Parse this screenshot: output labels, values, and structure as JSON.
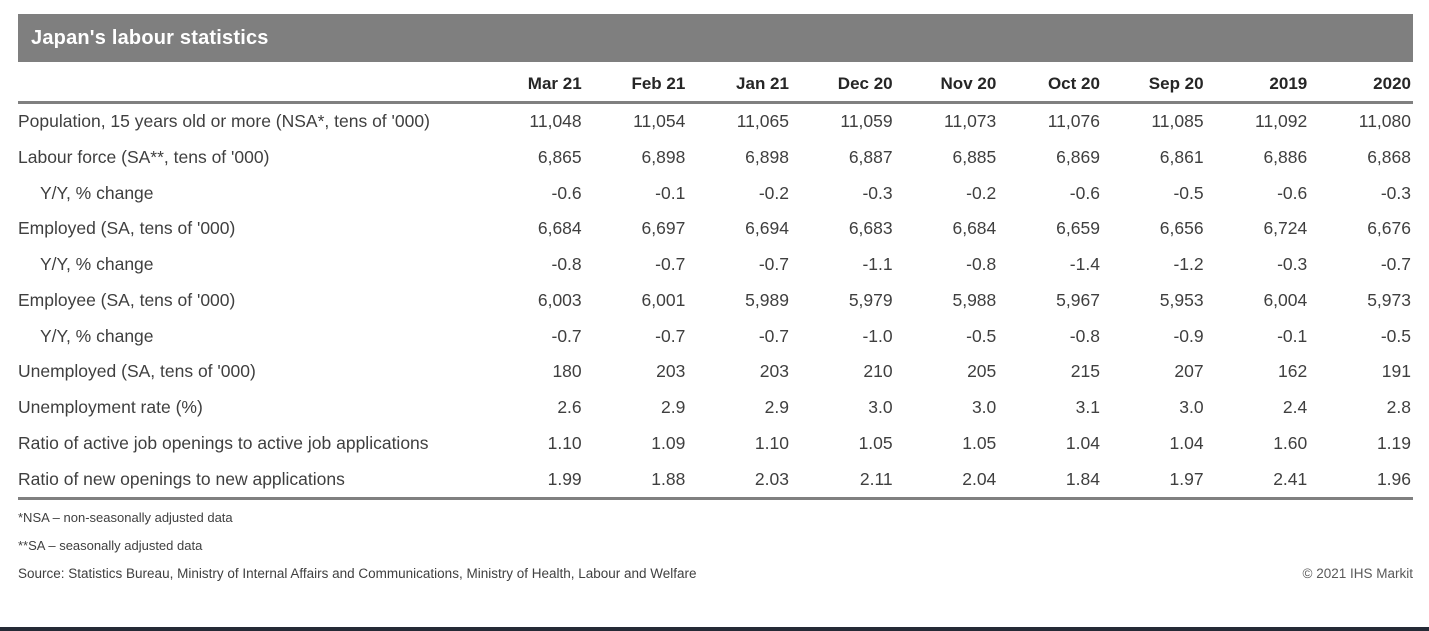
{
  "title": "Japan's labour statistics",
  "chart_data": {
    "type": "table",
    "title": "Japan's labour statistics",
    "columns": [
      "Mar 21",
      "Feb 21",
      "Jan 21",
      "Dec 20",
      "Nov 20",
      "Oct 20",
      "Sep 20",
      "2019",
      "2020"
    ],
    "rows": [
      {
        "label": "Population, 15 years old or more (NSA*, tens of '000)",
        "indent": false,
        "values": [
          "11,048",
          "11,054",
          "11,065",
          "11,059",
          "11,073",
          "11,076",
          "11,085",
          "11,092",
          "11,080"
        ]
      },
      {
        "label": "Labour force (SA**, tens of '000)",
        "indent": false,
        "values": [
          "6,865",
          "6,898",
          "6,898",
          "6,887",
          "6,885",
          "6,869",
          "6,861",
          "6,886",
          "6,868"
        ]
      },
      {
        "label": "Y/Y, % change",
        "indent": true,
        "values": [
          "-0.6",
          "-0.1",
          "-0.2",
          "-0.3",
          "-0.2",
          "-0.6",
          "-0.5",
          "-0.6",
          "-0.3"
        ]
      },
      {
        "label": "Employed (SA, tens of '000)",
        "indent": false,
        "values": [
          "6,684",
          "6,697",
          "6,694",
          "6,683",
          "6,684",
          "6,659",
          "6,656",
          "6,724",
          "6,676"
        ]
      },
      {
        "label": "Y/Y, % change",
        "indent": true,
        "values": [
          "-0.8",
          "-0.7",
          "-0.7",
          "-1.1",
          "-0.8",
          "-1.4",
          "-1.2",
          "-0.3",
          "-0.7"
        ]
      },
      {
        "label": "Employee (SA, tens of '000)",
        "indent": false,
        "values": [
          "6,003",
          "6,001",
          "5,989",
          "5,979",
          "5,988",
          "5,967",
          "5,953",
          "6,004",
          "5,973"
        ]
      },
      {
        "label": "Y/Y, % change",
        "indent": true,
        "values": [
          "-0.7",
          "-0.7",
          "-0.7",
          "-1.0",
          "-0.5",
          "-0.8",
          "-0.9",
          "-0.1",
          "-0.5"
        ]
      },
      {
        "label": "Unemployed (SA, tens of '000)",
        "indent": false,
        "values": [
          "180",
          "203",
          "203",
          "210",
          "205",
          "215",
          "207",
          "162",
          "191"
        ]
      },
      {
        "label": "Unemployment rate (%)",
        "indent": false,
        "values": [
          "2.6",
          "2.9",
          "2.9",
          "3.0",
          "3.0",
          "3.1",
          "3.0",
          "2.4",
          "2.8"
        ]
      },
      {
        "label": "Ratio of active job openings to active job applications",
        "indent": false,
        "values": [
          "1.10",
          "1.09",
          "1.10",
          "1.05",
          "1.05",
          "1.04",
          "1.04",
          "1.60",
          "1.19"
        ]
      },
      {
        "label": "Ratio of new openings to new applications",
        "indent": false,
        "values": [
          "1.99",
          "1.88",
          "2.03",
          "2.11",
          "2.04",
          "1.84",
          "1.97",
          "2.41",
          "1.96"
        ]
      }
    ]
  },
  "footnotes": [
    "*NSA – non-seasonally adjusted data",
    "**SA – seasonally adjusted data"
  ],
  "source": "Source: Statistics Bureau, Ministry of Internal Affairs and Communications, Ministry of Health, Labour and Welfare",
  "copyright": "© 2021 IHS Markit",
  "colors": {
    "banner_bg": "#7f7f7f",
    "banner_text": "#ffffff",
    "rule": "#808080",
    "text": "#3f3f3f",
    "header_text": "#262626",
    "bottom_bar": "#252a36"
  }
}
